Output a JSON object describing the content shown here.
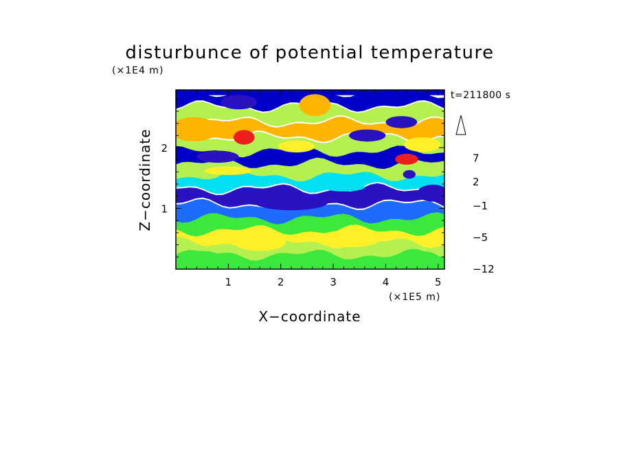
{
  "chart_data": {
    "type": "heatmap",
    "title": "disturbunce of potential temperature",
    "xlabel": "X−coordinate",
    "ylabel": "Z−coordinate",
    "x_unit": "(×1E5 m)",
    "y_unit": "(×1E4 m)",
    "time_label": "t=211800 s",
    "xlim": [
      0,
      5.12
    ],
    "ylim": [
      0,
      2.95
    ],
    "x_ticks": [
      1,
      2,
      3,
      4,
      5
    ],
    "y_ticks": [
      1,
      2
    ],
    "colorbar": {
      "ticks": [
        "−12",
        "−5",
        "−1",
        "2",
        "7"
      ],
      "levels": [
        -12,
        -10,
        -8,
        -6,
        -5,
        -4,
        -3,
        -2,
        -1,
        0,
        1,
        2,
        3,
        5,
        7,
        9,
        11
      ],
      "colors": [
        "#ff1fcf",
        "#c800a8",
        "#7d00b4",
        "#2a12c0",
        "#0000c8",
        "#0d34e6",
        "#1e6bff",
        "#00e0f0",
        "#00ee96",
        "#3ce83c",
        "#b4f050",
        "#fff028",
        "#ffb400",
        "#ff7a00",
        "#ee1e1e",
        "#f25a6e",
        "#ffb4c0"
      ],
      "extend": "max"
    },
    "bands": [
      {
        "z_center": 0.15,
        "value": 0.5
      },
      {
        "z_center": 0.35,
        "value": 1.5
      },
      {
        "z_center": 0.55,
        "value": 2.5
      },
      {
        "z_center": 0.75,
        "value": 0.5
      },
      {
        "z_center": 0.95,
        "value": -2.5
      },
      {
        "z_center": 1.2,
        "value": -5.5
      },
      {
        "z_center": 1.45,
        "value": -1.5
      },
      {
        "z_center": 1.65,
        "value": 1.5
      },
      {
        "z_center": 1.85,
        "value": -4.5
      },
      {
        "z_center": 2.05,
        "value": 1.5
      },
      {
        "z_center": 2.3,
        "value": 4
      },
      {
        "z_center": 2.55,
        "value": 1.5
      },
      {
        "z_center": 2.8,
        "value": -5
      }
    ],
    "features": [
      {
        "x": 4.4,
        "z": 1.81,
        "rx": 0.22,
        "rz": 0.09,
        "value": 8
      },
      {
        "x": 1.3,
        "z": 2.17,
        "rx": 0.2,
        "rz": 0.12,
        "value": 7
      },
      {
        "x": 0.35,
        "z": 2.3,
        "rx": 0.45,
        "rz": 0.2,
        "value": 4
      },
      {
        "x": 2.65,
        "z": 2.7,
        "rx": 0.3,
        "rz": 0.18,
        "value": 4
      },
      {
        "x": 3.65,
        "z": 2.2,
        "rx": 0.35,
        "rz": 0.1,
        "value": -5.5
      },
      {
        "x": 4.3,
        "z": 2.42,
        "rx": 0.3,
        "rz": 0.1,
        "value": -5.5
      },
      {
        "x": 4.45,
        "z": 1.56,
        "rx": 0.12,
        "rz": 0.07,
        "value": -5.5
      },
      {
        "x": 1.2,
        "z": 2.75,
        "rx": 0.35,
        "rz": 0.12,
        "value": -5.5
      },
      {
        "x": 0.8,
        "z": 1.85,
        "rx": 0.4,
        "rz": 0.1,
        "value": -5.5
      },
      {
        "x": 2.2,
        "z": 1.1,
        "rx": 0.7,
        "rz": 0.13,
        "value": -5.5
      },
      {
        "x": 4.9,
        "z": 1.25,
        "rx": 0.3,
        "rz": 0.14,
        "value": -5.5
      },
      {
        "x": 3.2,
        "z": 1.35,
        "rx": 0.4,
        "rz": 0.07,
        "value": -1.5
      },
      {
        "x": 1.6,
        "z": 0.45,
        "rx": 0.5,
        "rz": 0.15,
        "value": 2.5
      },
      {
        "x": 3.3,
        "z": 0.5,
        "rx": 0.6,
        "rz": 0.14,
        "value": 2.5
      },
      {
        "x": 0.5,
        "z": 0.2,
        "rx": 0.35,
        "rz": 0.1,
        "value": 0.5
      },
      {
        "x": 2.7,
        "z": 0.15,
        "rx": 0.5,
        "rz": 0.08,
        "value": 0.5
      },
      {
        "x": 4.6,
        "z": 0.2,
        "rx": 0.4,
        "rz": 0.1,
        "value": 0.5
      },
      {
        "x": 4.7,
        "z": 2.05,
        "rx": 0.35,
        "rz": 0.12,
        "value": 2.5
      },
      {
        "x": 2.3,
        "z": 2.02,
        "rx": 0.35,
        "rz": 0.1,
        "value": 2.5
      },
      {
        "x": 1.0,
        "z": 1.62,
        "rx": 0.45,
        "rz": 0.07,
        "value": 2.5
      }
    ]
  }
}
